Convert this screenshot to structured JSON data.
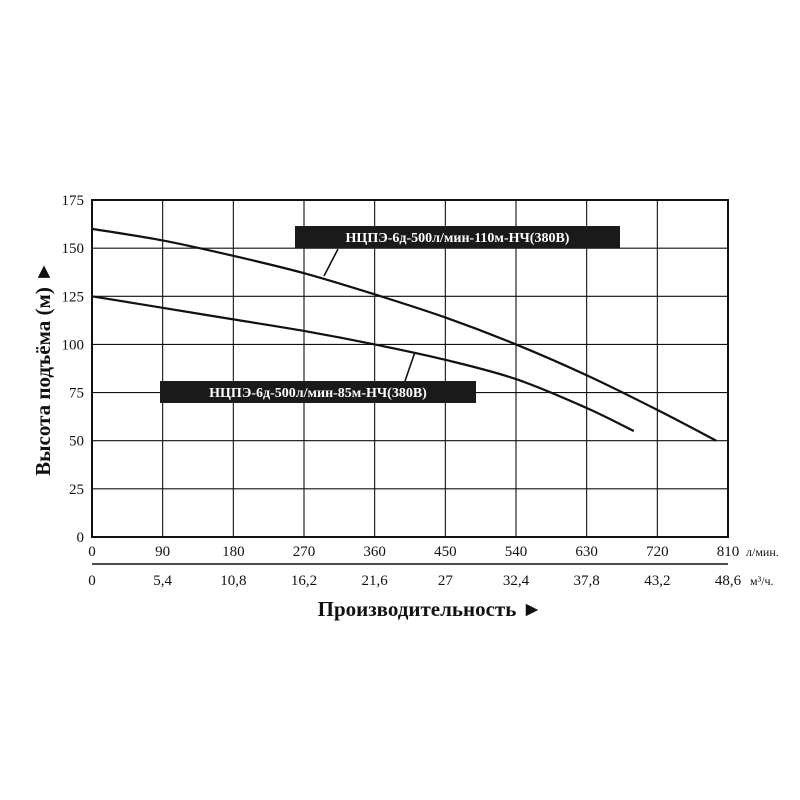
{
  "chart_data": {
    "type": "line",
    "xlabel": "Производительность ►",
    "ylabel": "Высота подъёма (м) ►",
    "x_unit": "л/мин.",
    "x2_unit": "м³/ч.",
    "xlim": [
      0,
      810
    ],
    "ylim": [
      0,
      175
    ],
    "x_ticks": [
      "0",
      "90",
      "180",
      "270",
      "360",
      "450",
      "540",
      "630",
      "720",
      "810"
    ],
    "x2_ticks": [
      "0",
      "5,4",
      "10,8",
      "16,2",
      "21,6",
      "27",
      "32,4",
      "37,8",
      "43,2",
      "48,6"
    ],
    "y_ticks": [
      "0",
      "25",
      "50",
      "75",
      "100",
      "125",
      "150",
      "175"
    ],
    "grid": true,
    "series": [
      {
        "name": "НЦПЭ-6д-500л/мин-110м-НЧ(380В)",
        "x": [
          0,
          90,
          180,
          270,
          360,
          450,
          540,
          630,
          720,
          795
        ],
        "y": [
          160,
          154,
          146,
          137,
          126,
          114,
          100,
          84,
          66,
          50
        ]
      },
      {
        "name": "НЦПЭ-6д-500л/мин-85м-НЧ(380В)",
        "x": [
          0,
          90,
          180,
          270,
          360,
          450,
          540,
          630,
          690
        ],
        "y": [
          125,
          119,
          113,
          107,
          100,
          92,
          82,
          67,
          55
        ]
      }
    ]
  }
}
